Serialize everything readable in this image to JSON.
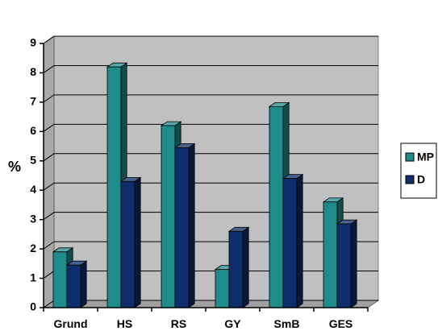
{
  "chart_data": {
    "type": "bar",
    "categories": [
      "Grund",
      "HS",
      "RS",
      "GY",
      "SmB",
      "GES"
    ],
    "series": [
      {
        "name": "MP",
        "values": [
          1.9,
          8.2,
          6.2,
          1.3,
          6.85,
          3.6
        ]
      },
      {
        "name": "D",
        "values": [
          1.45,
          4.3,
          5.45,
          2.6,
          4.4,
          2.85
        ]
      }
    ],
    "ylabel": "%",
    "xlabel": "",
    "ylim": [
      0,
      9
    ],
    "yticks": [
      "0",
      "1",
      "2",
      "3",
      "4",
      "5",
      "6",
      "7",
      "8",
      "9"
    ],
    "grid": true,
    "legend": "right",
    "colors": {
      "plot_background": "#c0c0c0",
      "MP": "#1f8c8c",
      "D": "#0d2e6b"
    }
  }
}
